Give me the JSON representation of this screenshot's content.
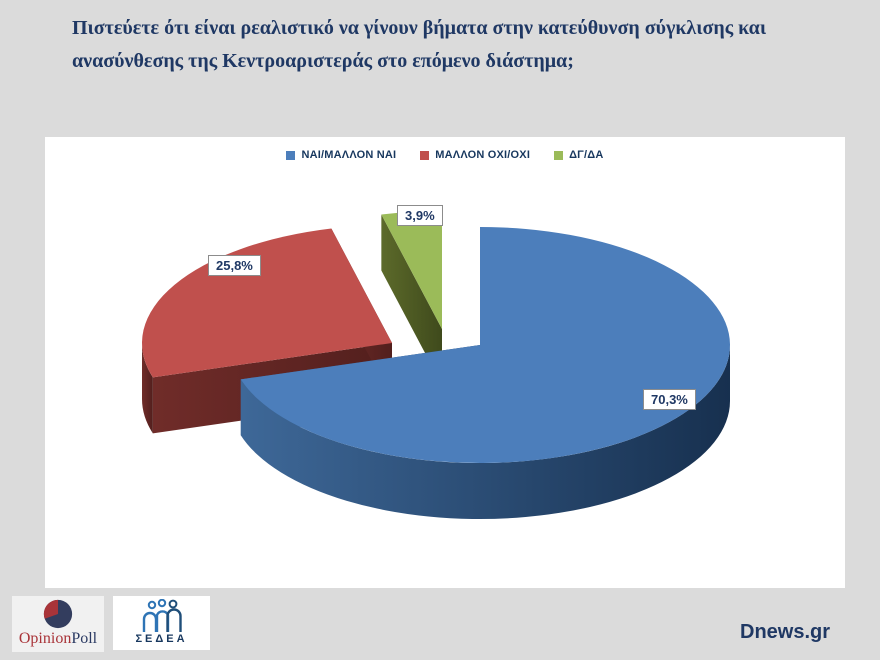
{
  "title": "Πιστεύετε ότι είναι ρεαλιστικό  να γίνουν βήματα στην κατεύθυνση σύγκλισης και ανασύνθεσης της Κεντροαριστεράς στο επόμενο διάστημα;",
  "chart_data": {
    "type": "pie",
    "style": "3d-exploded",
    "keys": [
      "yes",
      "no",
      "dk"
    ],
    "categories": [
      "ΝΑΙ/ΜΑΛΛΟΝ ΝΑΙ",
      "ΜΑΛΛΟΝ ΟΧΙ/ΟΧΙ",
      "ΔΓ/ΔΑ"
    ],
    "values": [
      70.3,
      25.8,
      3.9
    ],
    "labels": [
      "70,3%",
      "25,8%",
      "3,9%"
    ],
    "start_angle_deg": 0,
    "direction": "clockwise",
    "legend_position": "top-center",
    "colors": {
      "top": [
        "#4c7ebb",
        "#c0504d",
        "#9bbb59"
      ],
      "side_light": [
        "#3e6898",
        "#702c29",
        "#5c6a2a"
      ],
      "side_dark": [
        "#17304f",
        "#521f1d",
        "#3f4a1c"
      ],
      "legend_text": "#17375e",
      "label_text": "#1f3864"
    }
  },
  "footer": {
    "opinionpoll": {
      "part1": "Opinion",
      "part2": "Poll"
    },
    "sedea_label": "ΣΕΔΕΑ",
    "site_label": "Dnews.gr"
  }
}
